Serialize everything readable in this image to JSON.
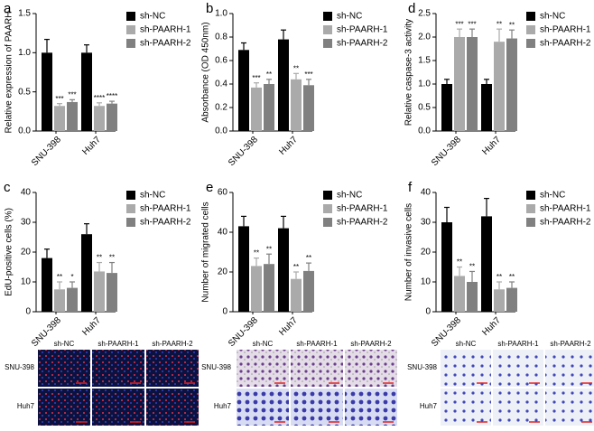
{
  "chart_data": [
    {
      "type": "bar",
      "panel": "a",
      "ylabel": "Relative expression of PAARH",
      "categories": [
        "SNU-398",
        "Huh7"
      ],
      "series": [
        {
          "name": "sh-NC",
          "color": "#000000",
          "values": [
            1.0,
            1.0
          ],
          "errors": [
            0.17,
            0.1
          ]
        },
        {
          "name": "sh-PAARH-1",
          "color": "#aaaaaa",
          "values": [
            0.32,
            0.32
          ],
          "errors": [
            0.03,
            0.04
          ],
          "annotations": [
            "***",
            "****"
          ]
        },
        {
          "name": "sh-PAARH-2",
          "color": "#808080",
          "values": [
            0.37,
            0.35
          ],
          "errors": [
            0.03,
            0.03
          ],
          "annotations": [
            "***",
            "****"
          ]
        }
      ],
      "ylim": [
        0,
        1.5
      ],
      "yticks": [
        {
          "value": 0,
          "label": "0.0"
        },
        {
          "value": 0.5,
          "label": "0.5"
        },
        {
          "value": 1,
          "label": "1.0"
        },
        {
          "value": 1.5,
          "label": "1.5"
        }
      ]
    },
    {
      "type": "bar",
      "panel": "b",
      "ylabel": "Absorbance (OD 450nm)",
      "categories": [
        "SNU-398",
        "Huh7"
      ],
      "series": [
        {
          "name": "sh-NC",
          "color": "#000000",
          "values": [
            0.69,
            0.78
          ],
          "errors": [
            0.06,
            0.08
          ]
        },
        {
          "name": "sh-PAARH-1",
          "color": "#aaaaaa",
          "values": [
            0.37,
            0.44
          ],
          "errors": [
            0.04,
            0.05
          ],
          "annotations": [
            "***",
            "**"
          ]
        },
        {
          "name": "sh-PAARH-2",
          "color": "#808080",
          "values": [
            0.4,
            0.39
          ],
          "errors": [
            0.04,
            0.05
          ],
          "annotations": [
            "**",
            "***"
          ]
        }
      ],
      "ylim": [
        0,
        1
      ],
      "yticks": [
        {
          "value": 0,
          "label": "0.0"
        },
        0.2,
        0.4,
        0.6,
        0.8,
        {
          "value": 1,
          "label": "1.0"
        }
      ]
    },
    {
      "type": "bar",
      "panel": "d",
      "ylabel": "Relative caspase-3 activity",
      "categories": [
        "SNU-398",
        "Huh7"
      ],
      "series": [
        {
          "name": "sh-NC",
          "color": "#000000",
          "values": [
            1.0,
            1.0
          ],
          "errors": [
            0.1,
            0.1
          ]
        },
        {
          "name": "sh-PAARH-1",
          "color": "#aaaaaa",
          "values": [
            2.0,
            1.9
          ],
          "errors": [
            0.17,
            0.27
          ],
          "annotations": [
            "***",
            "**"
          ]
        },
        {
          "name": "sh-PAARH-2",
          "color": "#808080",
          "values": [
            2.0,
            1.97
          ],
          "errors": [
            0.17,
            0.18
          ],
          "annotations": [
            "***",
            "**"
          ]
        }
      ],
      "ylim": [
        0,
        2.5
      ],
      "yticks": [
        {
          "value": 0,
          "label": "0.0"
        },
        0.5,
        {
          "value": 1,
          "label": "1.0"
        },
        1.5,
        {
          "value": 2,
          "label": "2.0"
        },
        2.5
      ]
    },
    {
      "type": "bar",
      "panel": "c",
      "ylabel": "EdU-positive cells (%)",
      "categories": [
        "SNU-398",
        "Huh7"
      ],
      "series": [
        {
          "name": "sh-NC",
          "color": "#000000",
          "values": [
            18,
            26
          ],
          "errors": [
            3,
            3.5
          ]
        },
        {
          "name": "sh-PAARH-1",
          "color": "#aaaaaa",
          "values": [
            7.5,
            13.5
          ],
          "errors": [
            2.5,
            3
          ],
          "annotations": [
            "**",
            "**"
          ]
        },
        {
          "name": "sh-PAARH-2",
          "color": "#808080",
          "values": [
            8,
            13
          ],
          "errors": [
            2,
            3.5
          ],
          "annotations": [
            "*",
            "**"
          ]
        }
      ],
      "ylim": [
        0,
        40
      ],
      "yticks": [
        0,
        10,
        20,
        30,
        40
      ]
    },
    {
      "type": "bar",
      "panel": "e",
      "ylabel": "Number of migrated cells",
      "categories": [
        "SNU-398",
        "Huh7"
      ],
      "series": [
        {
          "name": "sh-NC",
          "color": "#000000",
          "values": [
            43,
            42
          ],
          "errors": [
            5,
            6
          ]
        },
        {
          "name": "sh-PAARH-1",
          "color": "#aaaaaa",
          "values": [
            23,
            16.5
          ],
          "errors": [
            4,
            3.5
          ],
          "annotations": [
            "**",
            "**"
          ]
        },
        {
          "name": "sh-PAARH-2",
          "color": "#808080",
          "values": [
            24,
            20.5
          ],
          "errors": [
            5,
            4
          ],
          "annotations": [
            "**",
            "**"
          ]
        }
      ],
      "ylim": [
        0,
        60
      ],
      "yticks": [
        0,
        20,
        40,
        60
      ]
    },
    {
      "type": "bar",
      "panel": "f",
      "ylabel": "Number of invasive cells",
      "categories": [
        "SNU-398",
        "Huh7"
      ],
      "series": [
        {
          "name": "sh-NC",
          "color": "#000000",
          "values": [
            30,
            32
          ],
          "errors": [
            5,
            6
          ]
        },
        {
          "name": "sh-PAARH-1",
          "color": "#aaaaaa",
          "values": [
            12,
            7.5
          ],
          "errors": [
            3,
            2.5
          ],
          "annotations": [
            "**",
            "**"
          ]
        },
        {
          "name": "sh-PAARH-2",
          "color": "#808080",
          "values": [
            10,
            8
          ],
          "errors": [
            3.5,
            2
          ],
          "annotations": [
            "**",
            "**"
          ]
        }
      ],
      "ylim": [
        0,
        40
      ],
      "yticks": [
        0,
        10,
        20,
        30,
        40
      ]
    }
  ],
  "image_panels": [
    {
      "columns": [
        "sh-NC",
        "sh-PAARH-1",
        "sh-PAARH-2"
      ],
      "rows": [
        "SNU-398",
        "Huh7"
      ]
    },
    {
      "columns": [
        "sh-NC",
        "sh-PAARH-1",
        "sh-PAARH-2"
      ],
      "rows": [
        "SNU-398",
        "Huh7"
      ]
    },
    {
      "columns": [
        "sh-NC",
        "sh-PAARH-1",
        "sh-PAARH-2"
      ],
      "rows": [
        "SNU-398",
        "Huh7"
      ]
    }
  ]
}
